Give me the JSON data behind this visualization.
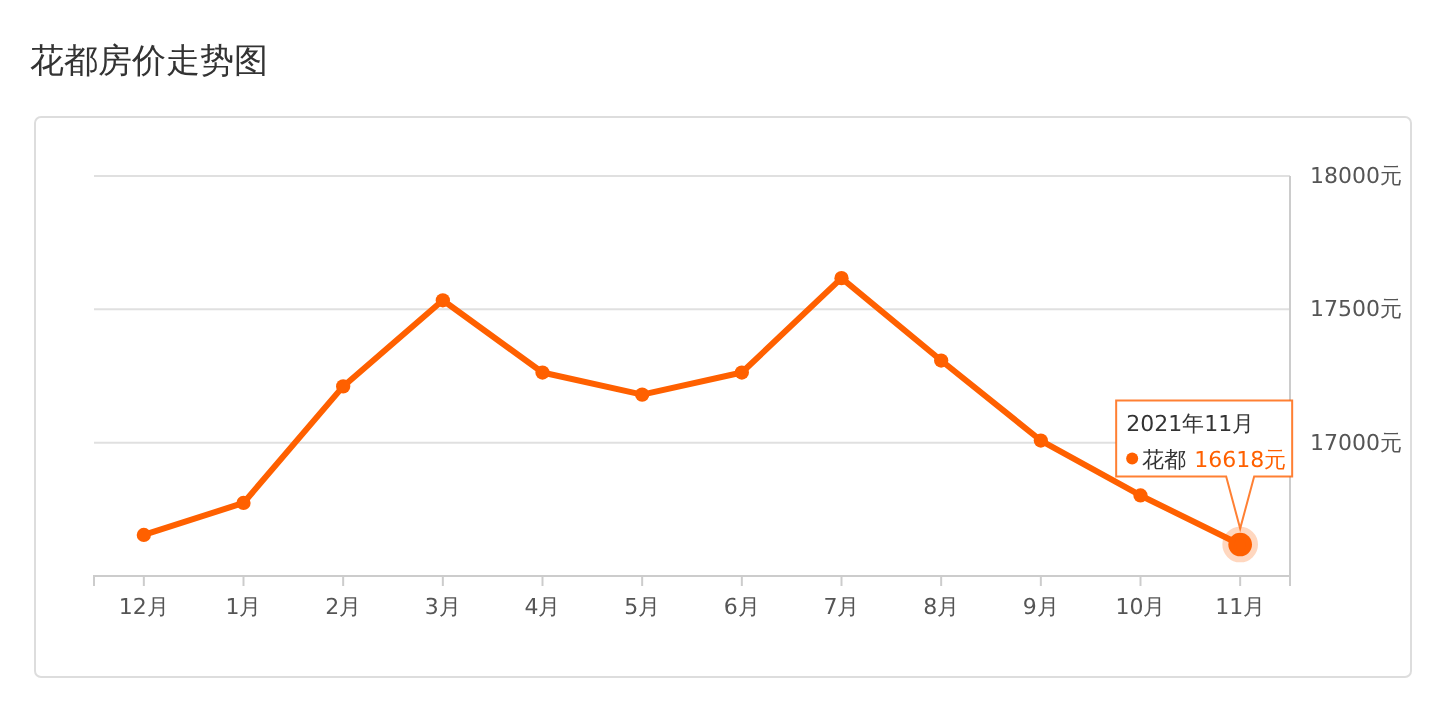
{
  "chart_data": {
    "type": "line",
    "title": "花都房价走势图",
    "categories": [
      "12月",
      "1月",
      "2月",
      "3月",
      "4月",
      "5月",
      "6月",
      "7月",
      "8月",
      "9月",
      "10月",
      "11月"
    ],
    "series": [
      {
        "name": "花都",
        "color": "#ff6000",
        "values": [
          16654,
          16774,
          17211,
          17534,
          17263,
          17180,
          17263,
          17617,
          17308,
          17008,
          16802,
          16618
        ],
        "value_labels": [
          null,
          null,
          null,
          null,
          null,
          null,
          null,
          null,
          null,
          null,
          null,
          "16618元"
        ]
      }
    ],
    "ylim": [
      16500,
      18000
    ],
    "yticks": [
      {
        "value": 16500,
        "label": null
      },
      {
        "value": 17000,
        "label": "17000元"
      },
      {
        "value": 17500,
        "label": "17500元"
      },
      {
        "value": 18000,
        "label": "18000元"
      }
    ],
    "grid": "y",
    "marker": "circle",
    "line_style": "solid",
    "annotations": [
      "2021年11月"
    ]
  }
}
